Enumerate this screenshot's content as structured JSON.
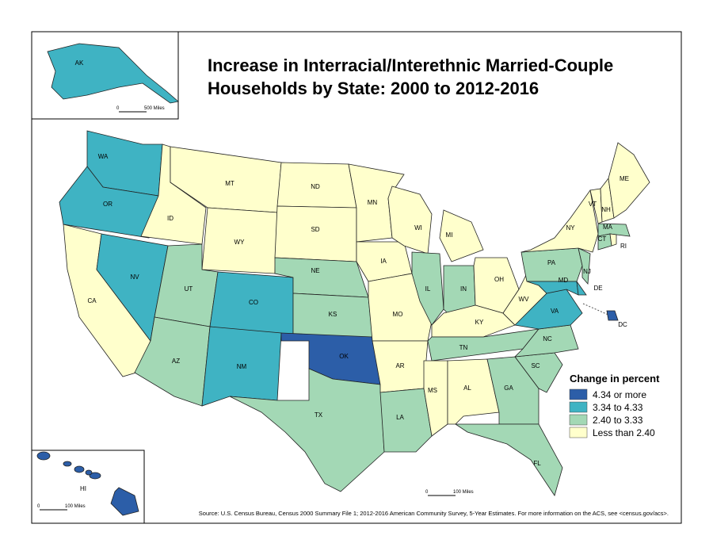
{
  "title": [
    "Increase in Interracial/Interethnic Married-Couple",
    "Households by State: 2000 to 2012-2016"
  ],
  "legend": {
    "title": "Change in percent",
    "items": [
      {
        "label": "4.34 or more",
        "color": "#2c5ea8"
      },
      {
        "label": "3.34 to 4.33",
        "color": "#3fb3c3"
      },
      {
        "label": "2.40 to 3.33",
        "color": "#a3d8b5"
      },
      {
        "label": "Less than 2.40",
        "color": "#ffffcc"
      }
    ]
  },
  "states": [
    {
      "abbr": "WA",
      "category": "3.34 to 4.33"
    },
    {
      "abbr": "OR",
      "category": "3.34 to 4.33"
    },
    {
      "abbr": "CA",
      "category": "Less than 2.40"
    },
    {
      "abbr": "NV",
      "category": "3.34 to 4.33"
    },
    {
      "abbr": "ID",
      "category": "Less than 2.40"
    },
    {
      "abbr": "MT",
      "category": "Less than 2.40"
    },
    {
      "abbr": "WY",
      "category": "Less than 2.40"
    },
    {
      "abbr": "UT",
      "category": "2.40 to 3.33"
    },
    {
      "abbr": "CO",
      "category": "3.34 to 4.33"
    },
    {
      "abbr": "AZ",
      "category": "2.40 to 3.33"
    },
    {
      "abbr": "NM",
      "category": "3.34 to 4.33"
    },
    {
      "abbr": "ND",
      "category": "Less than 2.40"
    },
    {
      "abbr": "SD",
      "category": "Less than 2.40"
    },
    {
      "abbr": "NE",
      "category": "2.40 to 3.33"
    },
    {
      "abbr": "KS",
      "category": "2.40 to 3.33"
    },
    {
      "abbr": "OK",
      "category": "4.34 or more"
    },
    {
      "abbr": "TX",
      "category": "2.40 to 3.33"
    },
    {
      "abbr": "MN",
      "category": "Less than 2.40"
    },
    {
      "abbr": "IA",
      "category": "Less than 2.40"
    },
    {
      "abbr": "MO",
      "category": "Less than 2.40"
    },
    {
      "abbr": "AR",
      "category": "Less than 2.40"
    },
    {
      "abbr": "LA",
      "category": "2.40 to 3.33"
    },
    {
      "abbr": "WI",
      "category": "Less than 2.40"
    },
    {
      "abbr": "IL",
      "category": "2.40 to 3.33"
    },
    {
      "abbr": "MI",
      "category": "Less than 2.40"
    },
    {
      "abbr": "IN",
      "category": "2.40 to 3.33"
    },
    {
      "abbr": "OH",
      "category": "Less than 2.40"
    },
    {
      "abbr": "KY",
      "category": "Less than 2.40"
    },
    {
      "abbr": "TN",
      "category": "2.40 to 3.33"
    },
    {
      "abbr": "MS",
      "category": "Less than 2.40"
    },
    {
      "abbr": "AL",
      "category": "Less than 2.40"
    },
    {
      "abbr": "GA",
      "category": "2.40 to 3.33"
    },
    {
      "abbr": "FL",
      "category": "2.40 to 3.33"
    },
    {
      "abbr": "SC",
      "category": "2.40 to 3.33"
    },
    {
      "abbr": "NC",
      "category": "2.40 to 3.33"
    },
    {
      "abbr": "VA",
      "category": "3.34 to 4.33"
    },
    {
      "abbr": "WV",
      "category": "Less than 2.40"
    },
    {
      "abbr": "PA",
      "category": "2.40 to 3.33"
    },
    {
      "abbr": "MD",
      "category": "3.34 to 4.33"
    },
    {
      "abbr": "DE",
      "category": "3.34 to 4.33"
    },
    {
      "abbr": "NJ",
      "category": "2.40 to 3.33"
    },
    {
      "abbr": "NY",
      "category": "Less than 2.40"
    },
    {
      "abbr": "VT",
      "category": "Less than 2.40"
    },
    {
      "abbr": "NH",
      "category": "Less than 2.40"
    },
    {
      "abbr": "ME",
      "category": "Less than 2.40"
    },
    {
      "abbr": "MA",
      "category": "2.40 to 3.33"
    },
    {
      "abbr": "CT",
      "category": "2.40 to 3.33"
    },
    {
      "abbr": "RI",
      "category": "Less than 2.40"
    },
    {
      "abbr": "DC",
      "category": "4.34 or more"
    },
    {
      "abbr": "AK",
      "category": "3.34 to 4.33"
    },
    {
      "abbr": "HI",
      "category": "4.34 or more"
    }
  ],
  "scale_bars": [
    {
      "start": "0",
      "end": "500 Miles"
    },
    {
      "start": "0",
      "end": "100 Miles"
    },
    {
      "start": "0",
      "end": "100 Miles"
    }
  ],
  "source": "Source: U.S. Census Bureau, Census 2000 Summary File 1; 2012-2016 American Community Survey, 5-Year Estimates. For more information on the ACS, see <census.gov/acs>."
}
